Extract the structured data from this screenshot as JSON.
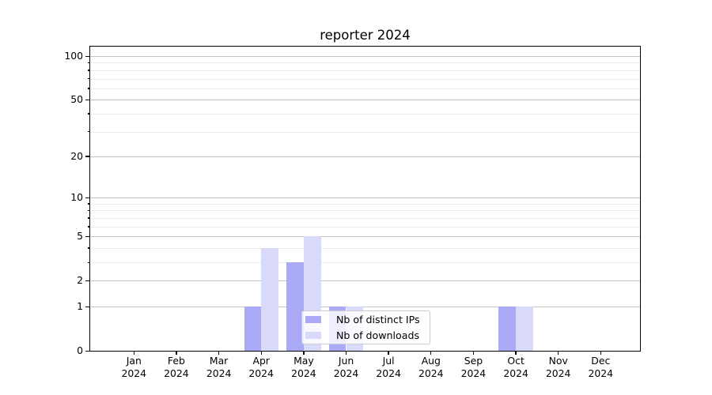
{
  "chart_data": {
    "type": "bar",
    "title": "reporter 2024",
    "categories": [
      "Jan",
      "Feb",
      "Mar",
      "Apr",
      "May",
      "Jun",
      "Jul",
      "Aug",
      "Sep",
      "Oct",
      "Nov",
      "Dec"
    ],
    "x_tick_year": "2024",
    "series": [
      {
        "name": "Nb of distinct IPs",
        "color": "#a9a9f5",
        "values": [
          0,
          0,
          0,
          1,
          3,
          1,
          0,
          0,
          0,
          1,
          0,
          0
        ]
      },
      {
        "name": "Nb of downloads",
        "color": "#d9d9fa",
        "values": [
          0,
          0,
          0,
          4,
          5,
          1,
          0,
          0,
          0,
          1,
          0,
          0
        ]
      }
    ],
    "y_axis": {
      "scale": "log1p",
      "major_ticks": [
        0,
        1,
        2,
        5,
        10,
        20,
        50,
        100
      ],
      "minor_gridlines": [
        3,
        4,
        6,
        7,
        8,
        9,
        30,
        40,
        60,
        70,
        80,
        90
      ],
      "grid": true
    },
    "legend": {
      "position": "lower center",
      "entries": [
        "Nb of distinct IPs",
        "Nb of downloads"
      ]
    }
  },
  "style": {
    "major_grid_color": "#c3c3c3",
    "minor_grid_color": "#ebebeb",
    "spine_color": "#000000",
    "text_color": "#000000"
  }
}
